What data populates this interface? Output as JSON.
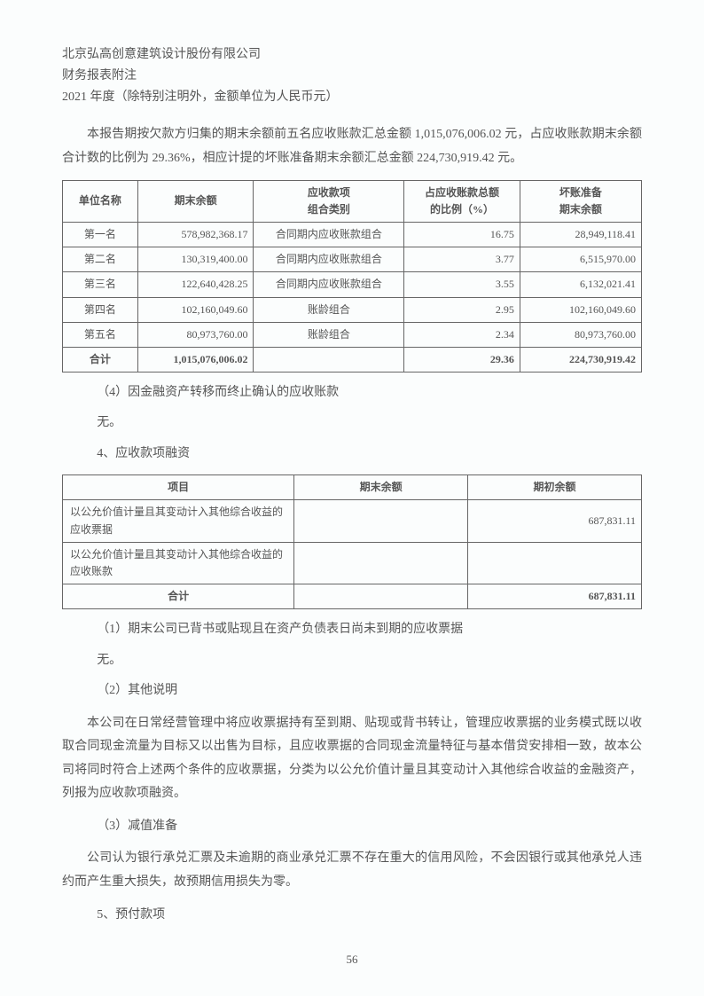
{
  "header": {
    "company": "北京弘高创意建筑设计股份有限公司",
    "subtitle": "财务报表附注",
    "period": "2021 年度（除特别注明外，金额单位为人民币元）"
  },
  "intro_para": "本报告期按欠款方归集的期末余额前五名应收账款汇总金额 1,015,076,006.02 元，占应收账款期末余额合计数的比例为 29.36%，相应计提的坏账准备期末余额汇总金额 224,730,919.42 元。",
  "table1": {
    "headers": {
      "c1": "单位名称",
      "c2": "期末余额",
      "c3a": "应收款项",
      "c3b": "组合类别",
      "c4a": "占应收账款总额",
      "c4b": "的比例（%）",
      "c5a": "坏账准备",
      "c5b": "期末余额"
    },
    "rows": [
      {
        "name": "第一名",
        "bal": "578,982,368.17",
        "cat": "合同期内应收账款组合",
        "pct": "16.75",
        "prov": "28,949,118.41"
      },
      {
        "name": "第二名",
        "bal": "130,319,400.00",
        "cat": "合同期内应收账款组合",
        "pct": "3.77",
        "prov": "6,515,970.00"
      },
      {
        "name": "第三名",
        "bal": "122,640,428.25",
        "cat": "合同期内应收账款组合",
        "pct": "3.55",
        "prov": "6,132,021.41"
      },
      {
        "name": "第四名",
        "bal": "102,160,049.60",
        "cat": "账龄组合",
        "pct": "2.95",
        "prov": "102,160,049.60"
      },
      {
        "name": "第五名",
        "bal": "80,973,760.00",
        "cat": "账龄组合",
        "pct": "2.34",
        "prov": "80,973,760.00"
      }
    ],
    "total": {
      "name": "合计",
      "bal": "1,015,076,006.02",
      "cat": "",
      "pct": "29.36",
      "prov": "224,730,919.42"
    }
  },
  "sec_4_title": "（4）因金融资产转移而终止确认的应收账款",
  "none_text": "无。",
  "sec4_title": "4、应收款项融资",
  "table2": {
    "headers": {
      "c1": "项目",
      "c2": "期末余额",
      "c3": "期初余额"
    },
    "rows": [
      {
        "label": "以公允价值计量且其变动计入其他综合收益的应收票据",
        "end": "",
        "beg": "687,831.11"
      },
      {
        "label": "以公允价值计量且其变动计入其他综合收益的应收账款",
        "end": "",
        "beg": ""
      }
    ],
    "total": {
      "label": "合计",
      "end": "",
      "beg": "687,831.11"
    }
  },
  "sec_1_title": "（1）期末公司已背书或贴现且在资产负债表日尚未到期的应收票据",
  "sec_2_title": "（2）其他说明",
  "explain_para": "本公司在日常经营管理中将应收票据持有至到期、贴现或背书转让，管理应收票据的业务模式既以收取合同现金流量为目标又以出售为目标，且应收票据的合同现金流量特征与基本借贷安排相一致，故本公司将同时符合上述两个条件的应收票据，分类为以公允价值计量且其变动计入其他综合收益的金融资产，列报为应收款项融资。",
  "sec_3_title": "（3）减值准备",
  "impair_para": "公司认为银行承兑汇票及未逾期的商业承兑汇票不存在重大的信用风险，不会因银行或其他承兑人违约而产生重大损失，故预期信用损失为零。",
  "sec5_title": "5、预付款项",
  "page_number": "56"
}
